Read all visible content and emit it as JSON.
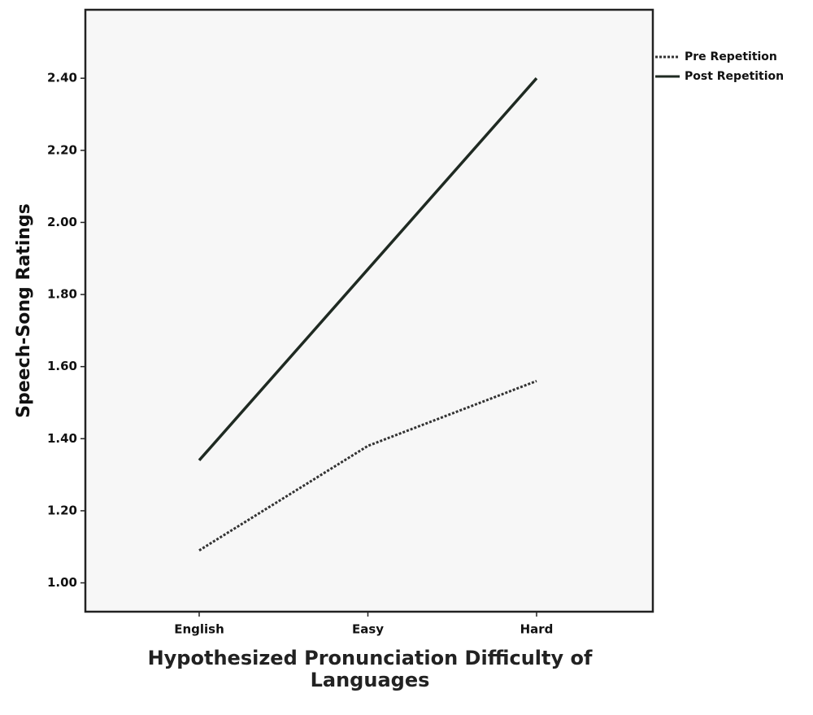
{
  "chart_data": {
    "type": "line",
    "x_label": "Hypothesized Pronunciation Difficulty of Languages",
    "y_label": "Speech-Song Ratings",
    "categories": [
      "English",
      "Easy",
      "Hard"
    ],
    "series": [
      {
        "name": "Pre Repetition",
        "color": "#333333",
        "dash": "dotted",
        "values": [
          1.09,
          1.38,
          1.56
        ]
      },
      {
        "name": "Post Repetition",
        "color": "#1f2a22",
        "dash": "solid",
        "values": [
          1.34,
          1.87,
          2.4
        ]
      }
    ],
    "ylim": [
      0.92,
      2.59
    ],
    "yticks": [
      {
        "value": 1.0,
        "label": "1.00"
      },
      {
        "value": 1.2,
        "label": "1.20"
      },
      {
        "value": 1.4,
        "label": "1.40"
      },
      {
        "value": 1.6,
        "label": "1.60"
      },
      {
        "value": 1.8,
        "label": "1.80"
      },
      {
        "value": 2.0,
        "label": "2.00"
      },
      {
        "value": 2.2,
        "label": "2.20"
      },
      {
        "value": 2.4,
        "label": "2.40"
      }
    ],
    "grid": false,
    "legend": "outside-top-right"
  }
}
